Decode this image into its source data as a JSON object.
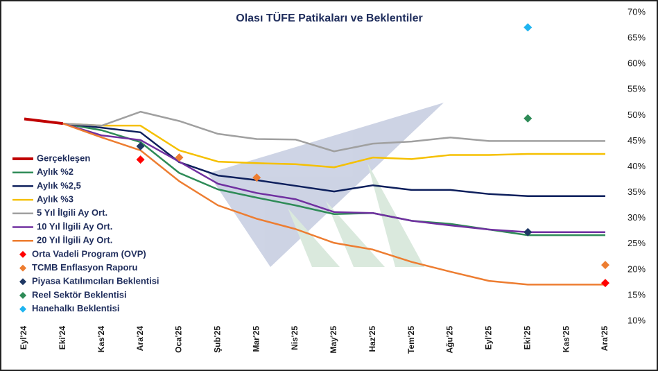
{
  "chart_data": {
    "type": "line",
    "title": "Olası TÜFE Patikaları ve Beklentiler",
    "categories": [
      "Eyl'24",
      "Eki'24",
      "Kas'24",
      "Ara'24",
      "Oca'25",
      "Şub'25",
      "Mar'25",
      "Nis'25",
      "May'25",
      "Haz'25",
      "Tem'25",
      "Ağu'25",
      "Eyl'25",
      "Eki'25",
      "Kas'25",
      "Ara'25"
    ],
    "ylim": [
      10,
      70
    ],
    "yticks": [
      {
        "value": 10,
        "label": "10%"
      },
      {
        "value": 15,
        "label": "15%"
      },
      {
        "value": 20,
        "label": "20%"
      },
      {
        "value": 25,
        "label": "25%"
      },
      {
        "value": 30,
        "label": "30%"
      },
      {
        "value": 35,
        "label": "35%"
      },
      {
        "value": 40,
        "label": "40%"
      },
      {
        "value": 45,
        "label": "45%"
      },
      {
        "value": 50,
        "label": "50%"
      },
      {
        "value": 55,
        "label": "55%"
      },
      {
        "value": 60,
        "label": "60%"
      },
      {
        "value": 65,
        "label": "65%"
      },
      {
        "value": 70,
        "label": "70%"
      }
    ],
    "y_axis_side": "right",
    "grid": false,
    "legend": "left",
    "series": [
      {
        "name": "Gerçekleşen",
        "type": "line",
        "color": "#c00000",
        "values": [
          49.3,
          48.4,
          null,
          null,
          null,
          null,
          null,
          null,
          null,
          null,
          null,
          null,
          null,
          null,
          null,
          null
        ]
      },
      {
        "name": "Aylık %2",
        "type": "line",
        "color": "#2e8b57",
        "values": [
          null,
          48.4,
          47.1,
          44.8,
          38.8,
          35.6,
          34.0,
          32.5,
          30.8,
          31.0,
          29.5,
          28.9,
          27.8,
          26.7,
          26.7,
          26.7
        ]
      },
      {
        "name": "Aylık %2,5",
        "type": "line",
        "color": "#0d1f5c",
        "values": [
          null,
          48.4,
          47.6,
          46.7,
          40.9,
          38.3,
          37.4,
          36.3,
          35.2,
          36.4,
          35.5,
          35.5,
          34.7,
          34.3,
          34.3,
          34.3
        ]
      },
      {
        "name": "Aylık %3",
        "type": "line",
        "color": "#f5c000",
        "values": [
          null,
          48.4,
          48.0,
          48.0,
          43.2,
          41.0,
          40.7,
          40.5,
          39.9,
          41.8,
          41.5,
          42.3,
          42.3,
          42.5,
          42.5,
          42.5
        ]
      },
      {
        "name": "5 Yıl İlgili Ay Ort.",
        "type": "line",
        "color": "#a0a0a0",
        "values": [
          null,
          48.4,
          48.0,
          50.7,
          48.9,
          46.4,
          45.4,
          45.3,
          43.0,
          44.5,
          44.9,
          45.7,
          45.0,
          45.0,
          45.0,
          45.0
        ]
      },
      {
        "name": "10 Yıl İlgili Ay Ort.",
        "type": "line",
        "color": "#7030a0",
        "values": [
          null,
          48.4,
          46.1,
          45.2,
          41.0,
          36.7,
          34.9,
          33.7,
          31.2,
          31.0,
          29.5,
          28.6,
          27.8,
          27.3,
          27.3,
          27.3
        ]
      },
      {
        "name": "20 Yıl İlgili Ay Ort.",
        "type": "line",
        "color": "#ed7d31",
        "values": [
          null,
          48.4,
          45.7,
          43.2,
          37.2,
          32.5,
          29.9,
          27.9,
          25.2,
          23.9,
          21.5,
          19.6,
          17.8,
          17.1,
          17.1,
          17.1
        ]
      },
      {
        "name": "Orta Vadeli Program (OVP)",
        "type": "scatter",
        "color": "#ff0000",
        "values": [
          null,
          null,
          null,
          41.4,
          null,
          null,
          null,
          null,
          null,
          null,
          null,
          null,
          null,
          null,
          null,
          17.4
        ]
      },
      {
        "name": "TCMB Enflasyon Raporu",
        "type": "scatter",
        "color": "#ed7d31",
        "values": [
          null,
          null,
          null,
          null,
          41.8,
          null,
          37.9,
          null,
          null,
          null,
          null,
          null,
          null,
          null,
          null,
          20.9
        ]
      },
      {
        "name": "Piyasa Katılımcıları Beklentisi",
        "type": "scatter",
        "color": "#1f3864",
        "values": [
          null,
          null,
          null,
          44.0,
          null,
          null,
          null,
          null,
          null,
          null,
          null,
          null,
          null,
          27.3,
          null,
          null
        ]
      },
      {
        "name": "Reel Sektör Beklentisi",
        "type": "scatter",
        "color": "#2e8b57",
        "values": [
          null,
          null,
          null,
          null,
          null,
          null,
          null,
          null,
          null,
          null,
          null,
          null,
          null,
          49.4,
          null,
          null
        ]
      },
      {
        "name": "Hanehalkı Beklentisi",
        "type": "scatter",
        "color": "#1fb4f0",
        "values": [
          null,
          null,
          null,
          null,
          null,
          null,
          null,
          null,
          null,
          null,
          null,
          null,
          null,
          67.1,
          null,
          null
        ]
      }
    ]
  }
}
